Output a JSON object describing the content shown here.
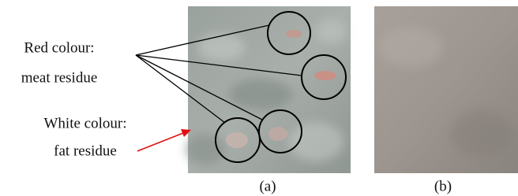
{
  "annotations": [
    {
      "lines": [
        "Red colour:",
        "meat residue"
      ]
    },
    {
      "lines": [
        "White colour:",
        "fat residue"
      ]
    }
  ],
  "panels": [
    {
      "label": "(a)"
    },
    {
      "label": "(b)"
    }
  ]
}
